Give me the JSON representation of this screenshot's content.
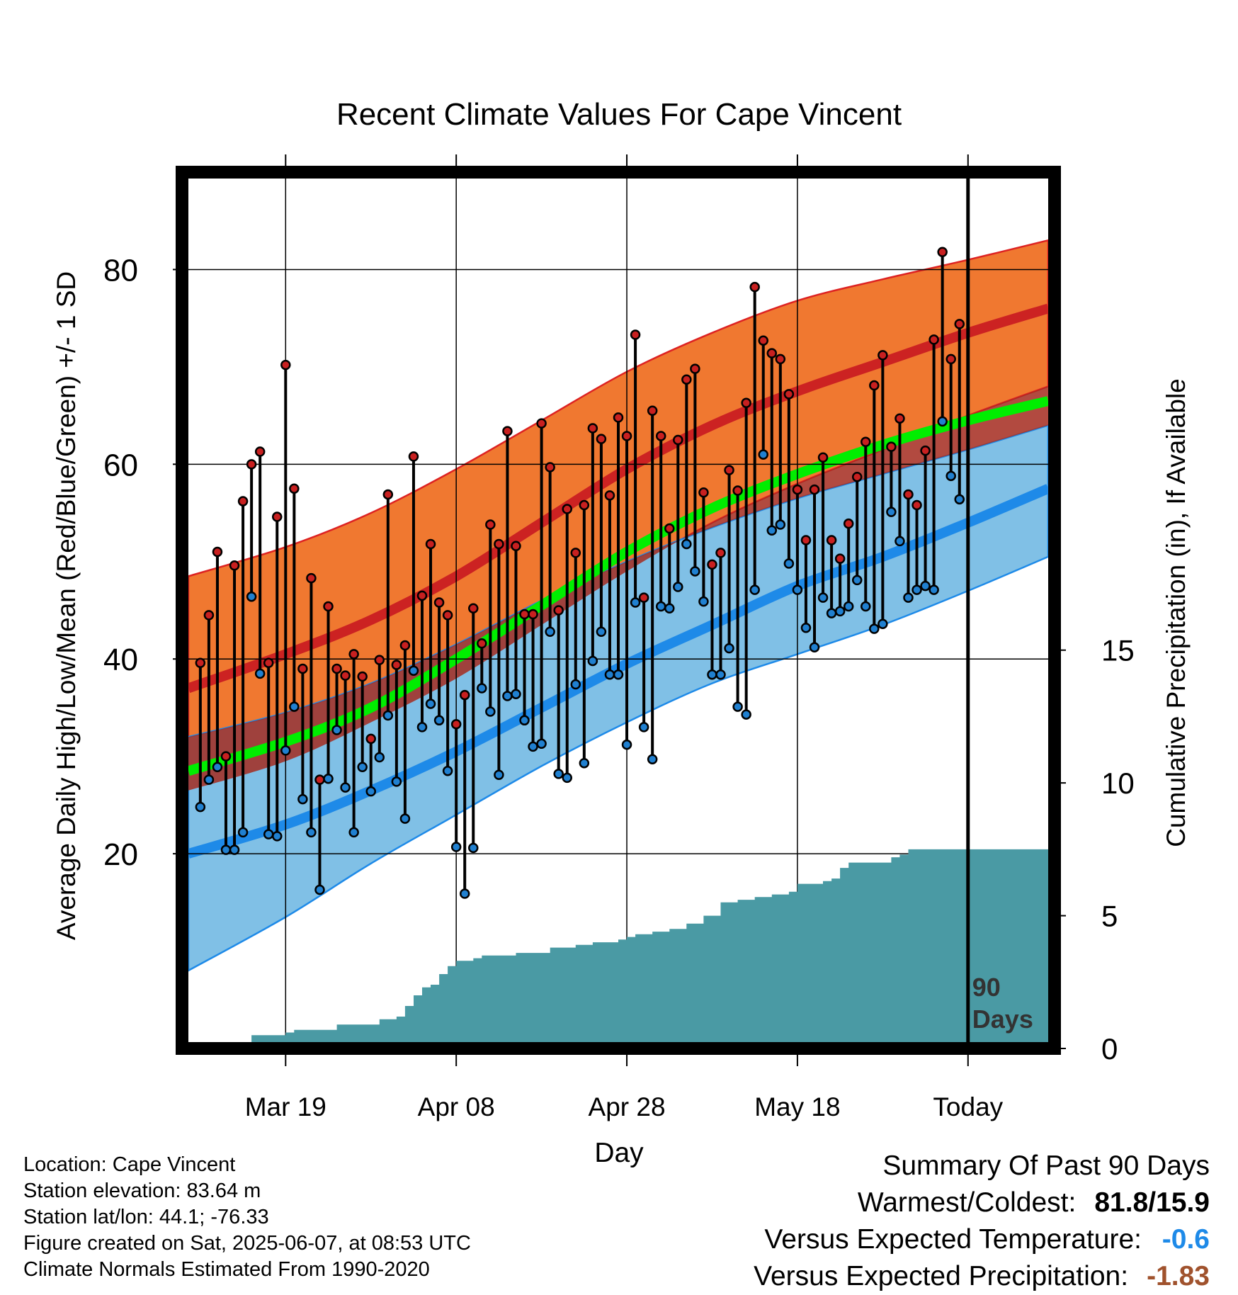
{
  "chart_data": {
    "type": "line",
    "title": "Recent Climate Values For Cape Vincent",
    "xlabel": "Day",
    "ylabel": "Average Daily High/Low/Mean (Red/Blue/Green) +/- 1 SD",
    "y2label": "Cumulative Precipitation (in), If Available",
    "xticks": [
      "Mar 19",
      "Apr 08",
      "Apr 28",
      "May 18",
      "Today"
    ],
    "xtick_days": [
      10,
      30,
      50,
      70,
      90
    ],
    "xlim": [
      -1.4,
      99.4
    ],
    "ylim": [
      0,
      90
    ],
    "yticks": [
      20,
      40,
      60,
      80
    ],
    "ylim2": [
      0,
      33
    ],
    "y2ticks": [
      0,
      5,
      10,
      15
    ],
    "grid": true,
    "today_marker_label": "90\nDays",
    "colors": {
      "high_band": "#f07830",
      "high_band_edge": "#dd2222",
      "high_mean": "#cc2222",
      "low_band": "#80c0e6",
      "low_band_edge": "#1e8ae8",
      "low_mean": "#1e8ae8",
      "avg_mean": "#00ee00",
      "precip": "#4a9aa4",
      "high_point": "#c82020",
      "low_point": "#2080d0"
    },
    "normals": {
      "x": [
        -1.4,
        10,
        20,
        30,
        40,
        50,
        60,
        70,
        80,
        90,
        99.4
      ],
      "high_upper": [
        48.5,
        51.5,
        55,
        59.5,
        64.5,
        69.5,
        73.5,
        76.8,
        79,
        81,
        83
      ],
      "high_mean": [
        37,
        40.5,
        44,
        48.5,
        54,
        59.5,
        64,
        67.5,
        70.5,
        73.5,
        76
      ],
      "high_lower": [
        26.5,
        29.5,
        33.5,
        38,
        43.5,
        49,
        54,
        58,
        61.5,
        65,
        68
      ],
      "avg_mean": [
        28.5,
        31.5,
        35,
        40,
        45.5,
        51,
        55.5,
        59,
        62,
        64.5,
        66.5
      ],
      "low_upper": [
        32,
        34.5,
        37.5,
        41.5,
        46,
        50,
        53.5,
        56.5,
        59,
        61.5,
        64
      ],
      "low_mean": [
        20,
        23,
        26.5,
        30.5,
        35,
        39.5,
        43.5,
        47.5,
        50.5,
        54,
        57.5
      ],
      "low_lower": [
        8,
        13.5,
        19,
        24,
        29,
        33.5,
        37.5,
        40.5,
        43.5,
        47,
        50.5
      ]
    },
    "series": [
      {
        "name": "High",
        "values": [
          39.6,
          44.5,
          51,
          30,
          49.6,
          56.2,
          60,
          61.3,
          39.6,
          54.6,
          70.2,
          57.5,
          39,
          48.3,
          27.6,
          45.4,
          39,
          38.3,
          40.5,
          38.2,
          31.8,
          39.9,
          56.9,
          39.4,
          41.4,
          60.8,
          46.5,
          51.8,
          45.8,
          44.5,
          33.3,
          36.3,
          45.2,
          41.6,
          53.8,
          51.8,
          63.4,
          51.6,
          44.6,
          44.6,
          64.2,
          59.7,
          45,
          55.4,
          50.9,
          55.8,
          63.7,
          62.6,
          56.8,
          64.8,
          62.9,
          73.3,
          46.3,
          65.5,
          62.9,
          53.4,
          62.5,
          68.7,
          69.8,
          57.1,
          49.7,
          50.9,
          59.4,
          57.3,
          66.3,
          78.2,
          72.7,
          71.4,
          70.8,
          67.2,
          57.4,
          52.2,
          57.4,
          60.7,
          52.2,
          50.3,
          53.9,
          58.7,
          62.3,
          68.1,
          71.2,
          61.8,
          64.7,
          56.9,
          55.8,
          61.4,
          72.8,
          81.8,
          70.8,
          74.4
        ]
      },
      {
        "name": "Low",
        "values": [
          24.8,
          27.6,
          28.9,
          20.4,
          20.4,
          22.2,
          46.4,
          38.5,
          22,
          21.8,
          30.6,
          35.1,
          25.6,
          22.2,
          16.3,
          27.7,
          32.7,
          26.8,
          22.2,
          28.9,
          26.4,
          29.9,
          34.2,
          27.4,
          23.6,
          38.8,
          33,
          35.4,
          33.7,
          28.5,
          20.7,
          15.9,
          20.6,
          37,
          34.6,
          28.1,
          36.2,
          36.4,
          33.7,
          31,
          31.3,
          42.8,
          28.2,
          27.8,
          37.4,
          29.3,
          39.8,
          42.8,
          38.4,
          38.4,
          31.2,
          45.8,
          33,
          29.7,
          45.4,
          45.2,
          47.4,
          51.8,
          49,
          45.9,
          38.4,
          38.4,
          41.1,
          35.1,
          34.3,
          47.1,
          61,
          53.2,
          53.8,
          49.8,
          47.1,
          43.2,
          41.2,
          46.3,
          44.7,
          44.9,
          45.4,
          48.1,
          45.4,
          43.1,
          43.6,
          55.1,
          52.1,
          46.3,
          47.1,
          47.5,
          47.1,
          64.4,
          58.8,
          56.4
        ]
      }
    ],
    "precip_cumulative": [
      [
        5,
        0
      ],
      [
        6,
        0.5
      ],
      [
        9,
        0.5
      ],
      [
        10,
        0.6
      ],
      [
        11,
        0.7
      ],
      [
        15,
        0.7
      ],
      [
        16,
        0.9
      ],
      [
        20,
        0.9
      ],
      [
        21,
        1.1
      ],
      [
        23,
        1.2
      ],
      [
        24,
        1.6
      ],
      [
        25,
        2.0
      ],
      [
        26,
        2.3
      ],
      [
        27,
        2.4
      ],
      [
        28,
        2.8
      ],
      [
        29,
        3.1
      ],
      [
        30,
        3.3
      ],
      [
        32,
        3.4
      ],
      [
        33,
        3.5
      ],
      [
        35,
        3.5
      ],
      [
        37,
        3.6
      ],
      [
        39,
        3.6
      ],
      [
        41,
        3.8
      ],
      [
        44,
        3.9
      ],
      [
        46,
        4.0
      ],
      [
        47,
        4.0
      ],
      [
        49,
        4.1
      ],
      [
        50,
        4.2
      ],
      [
        51,
        4.3
      ],
      [
        53,
        4.4
      ],
      [
        55,
        4.5
      ],
      [
        57,
        4.7
      ],
      [
        59,
        5.0
      ],
      [
        61,
        5.5
      ],
      [
        63,
        5.6
      ],
      [
        65,
        5.7
      ],
      [
        67,
        5.8
      ],
      [
        69,
        5.9
      ],
      [
        70,
        6.2
      ],
      [
        72,
        6.2
      ],
      [
        73,
        6.3
      ],
      [
        74,
        6.4
      ],
      [
        75,
        6.8
      ],
      [
        76,
        7.0
      ],
      [
        80,
        7.0
      ],
      [
        81,
        7.2
      ],
      [
        82,
        7.3
      ],
      [
        83,
        7.5
      ],
      [
        99.4,
        7.5
      ]
    ]
  },
  "info": {
    "location": "Location: Cape Vincent",
    "elevation": "Station elevation: 83.64 m",
    "latlon": "Station lat/lon: 44.1; -76.33",
    "created": "Figure created on Sat, 2025-06-07, at 08:53 UTC",
    "normals": "Climate Normals Estimated From 1990-2020"
  },
  "summary": {
    "heading": "Summary Of Past 90 Days",
    "warm_cold_label": "Warmest/Coldest:",
    "warm_cold_value": "81.8/15.9",
    "temp_label": "Versus Expected Temperature:",
    "temp_value": "-0.6",
    "temp_color": "#1e8ae8",
    "precip_label": "Versus Expected Precipitation:",
    "precip_value": "-1.83",
    "precip_color": "#a0522d"
  }
}
